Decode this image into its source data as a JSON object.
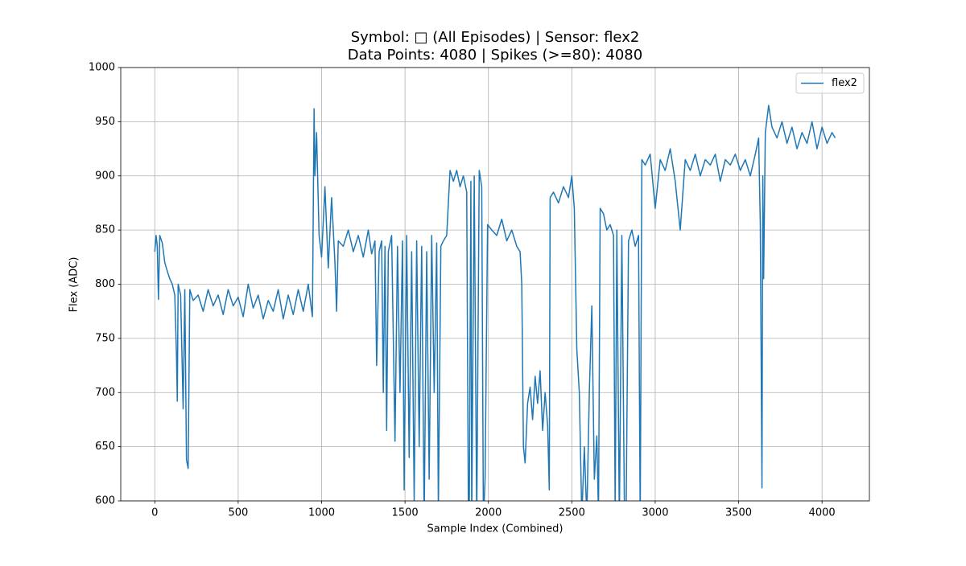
{
  "chart_data": {
    "type": "line",
    "title": [
      "Symbol: □ (All Episodes) | Sensor: flex2",
      "Data Points: 4080 | Spikes (>=80): 4080"
    ],
    "xlabel": "Sample Index (Combined)",
    "ylabel": "Flex (ADC)",
    "xlim": [
      -204,
      4284
    ],
    "ylim": [
      600,
      1000
    ],
    "xticks": [
      0,
      500,
      1000,
      1500,
      2000,
      2500,
      3000,
      3500,
      4000
    ],
    "yticks": [
      600,
      650,
      700,
      750,
      800,
      850,
      900,
      950,
      1000
    ],
    "grid": true,
    "legend": "upper right",
    "x": [
      0,
      8,
      15,
      22,
      30,
      45,
      60,
      75,
      90,
      105,
      120,
      130,
      135,
      140,
      155,
      170,
      180,
      190,
      200,
      210,
      230,
      260,
      290,
      320,
      350,
      380,
      410,
      440,
      470,
      500,
      530,
      560,
      590,
      620,
      650,
      680,
      710,
      740,
      770,
      800,
      830,
      860,
      890,
      920,
      945,
      955,
      960,
      970,
      985,
      1000,
      1020,
      1040,
      1060,
      1080,
      1090,
      1100,
      1130,
      1160,
      1190,
      1220,
      1250,
      1280,
      1300,
      1320,
      1330,
      1345,
      1360,
      1370,
      1380,
      1390,
      1400,
      1420,
      1440,
      1455,
      1470,
      1485,
      1495,
      1510,
      1525,
      1540,
      1555,
      1570,
      1585,
      1600,
      1615,
      1630,
      1645,
      1660,
      1675,
      1690,
      1700,
      1715,
      1730,
      1750,
      1770,
      1790,
      1810,
      1830,
      1850,
      1870,
      1880,
      1885,
      1895,
      1900,
      1915,
      1930,
      1945,
      1960,
      1970,
      1980,
      1995,
      2020,
      2050,
      2080,
      2110,
      2140,
      2170,
      2190,
      2200,
      2210,
      2220,
      2235,
      2250,
      2265,
      2280,
      2295,
      2310,
      2325,
      2340,
      2355,
      2365,
      2370,
      2390,
      2420,
      2450,
      2480,
      2500,
      2515,
      2530,
      2545,
      2560,
      2575,
      2590,
      2605,
      2620,
      2635,
      2650,
      2660,
      2670,
      2690,
      2710,
      2730,
      2750,
      2760,
      2770,
      2785,
      2800,
      2815,
      2825,
      2840,
      2860,
      2880,
      2900,
      2910,
      2920,
      2940,
      2970,
      3000,
      3030,
      3060,
      3090,
      3120,
      3150,
      3180,
      3210,
      3240,
      3270,
      3300,
      3330,
      3360,
      3390,
      3420,
      3450,
      3480,
      3510,
      3540,
      3570,
      3600,
      3620,
      3630,
      3640,
      3645,
      3650,
      3660,
      3680,
      3700,
      3730,
      3760,
      3790,
      3820,
      3850,
      3880,
      3910,
      3940,
      3970,
      4000,
      4030,
      4060,
      4079
    ],
    "series": [
      {
        "name": "flex2",
        "color": "#1f77b4",
        "values": [
          830,
          845,
          835,
          786,
          845,
          838,
          820,
          812,
          805,
          800,
          790,
          735,
          692,
          800,
          790,
          685,
          795,
          638,
          630,
          795,
          785,
          790,
          775,
          795,
          780,
          790,
          772,
          795,
          780,
          788,
          770,
          800,
          778,
          790,
          768,
          785,
          775,
          795,
          768,
          790,
          772,
          795,
          775,
          800,
          770,
          962,
          900,
          940,
          845,
          825,
          890,
          815,
          880,
          820,
          775,
          840,
          835,
          850,
          830,
          845,
          825,
          850,
          828,
          840,
          725,
          830,
          840,
          700,
          835,
          665,
          830,
          845,
          655,
          835,
          700,
          840,
          610,
          845,
          640,
          830,
          600,
          840,
          650,
          835,
          580,
          830,
          620,
          845,
          700,
          838,
          590,
          835,
          840,
          845,
          905,
          895,
          905,
          890,
          900,
          885,
          590,
          580,
          895,
          580,
          900,
          580,
          905,
          890,
          580,
          620,
          855,
          850,
          845,
          860,
          840,
          850,
          835,
          830,
          800,
          650,
          635,
          690,
          705,
          675,
          715,
          690,
          720,
          665,
          700,
          670,
          610,
          880,
          885,
          875,
          890,
          880,
          900,
          870,
          740,
          700,
          585,
          650,
          585,
          700,
          780,
          620,
          660,
          585,
          870,
          865,
          850,
          855,
          845,
          590,
          850,
          580,
          845,
          600,
          580,
          840,
          850,
          835,
          845,
          580,
          915,
          910,
          920,
          870,
          915,
          905,
          925,
          895,
          850,
          915,
          905,
          920,
          900,
          915,
          910,
          920,
          895,
          915,
          910,
          920,
          905,
          915,
          900,
          920,
          935,
          855,
          612,
          900,
          805,
          940,
          965,
          945,
          935,
          950,
          930,
          945,
          925,
          940,
          930,
          950,
          925,
          945,
          930,
          940,
          935
        ]
      }
    ]
  }
}
